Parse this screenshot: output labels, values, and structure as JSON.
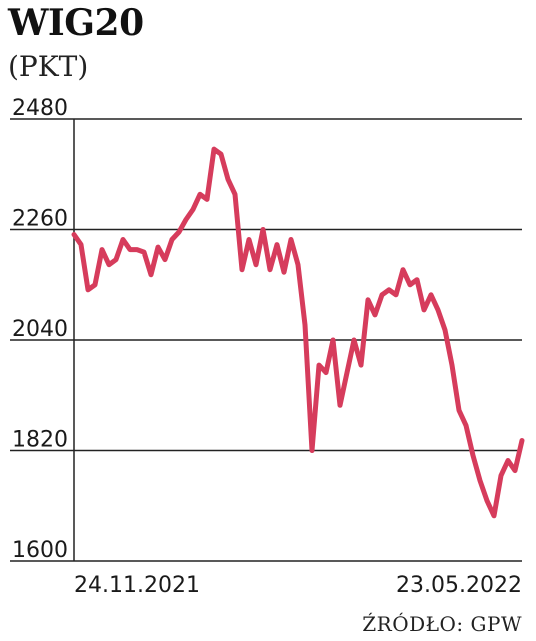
{
  "header": {
    "title": "WIG20",
    "unit": "(PKT)"
  },
  "source": "ŹRÓDŁO: GPW",
  "chart_data": {
    "type": "line",
    "title": "WIG20",
    "ylabel": "(PKT)",
    "xlabel": "",
    "ylim": [
      1600,
      2480
    ],
    "yticks": [
      1600,
      1820,
      2040,
      2260,
      2480
    ],
    "x_range": [
      "24.11.2021",
      "23.05.2022"
    ],
    "xtick_labels": [
      "24.11.2021",
      "23.05.2022"
    ],
    "grid": true,
    "line_color": "#d63c5c",
    "grid_color": "#222222",
    "series": [
      {
        "values": [
          2250,
          2230,
          2140,
          2150,
          2220,
          2190,
          2200,
          2240,
          2220,
          2220,
          2215,
          2170,
          2225,
          2200,
          2240,
          2255,
          2280,
          2300,
          2330,
          2320,
          2420,
          2410,
          2360,
          2330,
          2180,
          2240,
          2190,
          2260,
          2180,
          2230,
          2175,
          2240,
          2190,
          2070,
          1820,
          1990,
          1975,
          2040,
          1910,
          1975,
          2040,
          1990,
          2120,
          2090,
          2130,
          2140,
          2130,
          2180,
          2150,
          2160,
          2100,
          2130,
          2100,
          2060,
          1990,
          1900,
          1870,
          1810,
          1760,
          1720,
          1690,
          1770,
          1800,
          1780,
          1840
        ]
      }
    ]
  }
}
